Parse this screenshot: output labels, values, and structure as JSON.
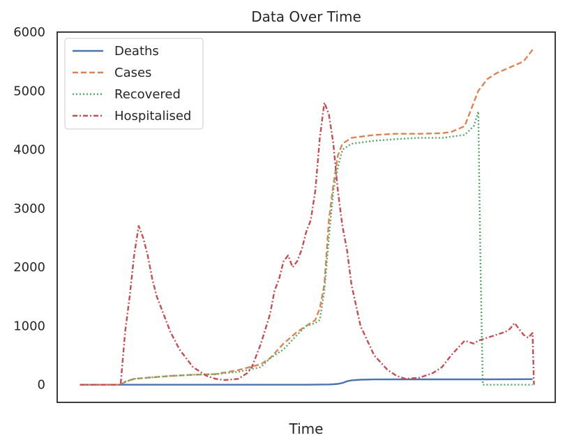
{
  "chart_data": {
    "type": "line",
    "title": "Data Over Time",
    "xlabel": "Time",
    "ylabel": "",
    "ylim": [
      -300,
      6000
    ],
    "yticks": [
      0,
      1000,
      2000,
      3000,
      4000,
      5000,
      6000
    ],
    "yticklabels": [
      "0",
      "1000",
      "2000",
      "3000",
      "4000",
      "5000",
      "6000"
    ],
    "xlim": [
      -5,
      105
    ],
    "legend_position": "upper-left",
    "grid": false,
    "series": [
      {
        "name": "Deaths",
        "color": "#4c72b0",
        "dash": "solid",
        "x": [
          0,
          10,
          20,
          30,
          40,
          50,
          55,
          56,
          57,
          58,
          59,
          60,
          62,
          65,
          70,
          80,
          90,
          100
        ],
        "y": [
          0,
          0,
          0,
          0,
          0,
          0,
          5,
          8,
          15,
          30,
          60,
          75,
          85,
          90,
          92,
          92,
          92,
          95
        ]
      },
      {
        "name": "Cases",
        "color": "#dd8452",
        "dash": "dashed",
        "x": [
          0,
          9,
          10,
          12,
          15,
          20,
          25,
          30,
          35,
          40,
          42,
          45,
          48,
          50,
          51,
          52,
          53,
          54,
          55,
          56,
          57,
          58,
          59,
          60,
          62,
          65,
          70,
          75,
          80,
          82,
          85,
          86,
          87,
          88,
          89,
          90,
          92,
          95,
          98,
          100
        ],
        "y": [
          0,
          0,
          50,
          100,
          120,
          150,
          170,
          180,
          250,
          350,
          450,
          700,
          900,
          1000,
          1050,
          1100,
          1300,
          1700,
          2800,
          3400,
          3900,
          4100,
          4150,
          4200,
          4220,
          4250,
          4270,
          4270,
          4280,
          4300,
          4400,
          4600,
          4800,
          5000,
          5100,
          5200,
          5300,
          5400,
          5500,
          5700
        ]
      },
      {
        "name": "Recovered",
        "color": "#55a868",
        "dash": "dotted",
        "x": [
          0,
          9,
          10,
          12,
          15,
          20,
          25,
          30,
          35,
          40,
          42,
          45,
          48,
          50,
          52,
          53,
          54,
          55,
          56,
          57,
          58,
          59,
          60,
          65,
          70,
          75,
          80,
          85,
          87,
          88,
          88.5,
          89,
          90,
          95,
          100
        ],
        "y": [
          0,
          0,
          50,
          100,
          120,
          150,
          170,
          180,
          220,
          300,
          450,
          600,
          850,
          1000,
          1050,
          1100,
          1600,
          2500,
          3300,
          3700,
          4000,
          4050,
          4100,
          4150,
          4180,
          4200,
          4200,
          4250,
          4400,
          4650,
          2000,
          0,
          0,
          0,
          0
        ]
      },
      {
        "name": "Hospitalised",
        "color": "#c44e52",
        "dash": "dashdot",
        "x": [
          0,
          9,
          10,
          11,
          12,
          13,
          14,
          15,
          16,
          17,
          18,
          20,
          22,
          25,
          28,
          30,
          32,
          35,
          37,
          38,
          40,
          42,
          43,
          44,
          45,
          46,
          47,
          48,
          49,
          50,
          51,
          52,
          53,
          54,
          55,
          56,
          57,
          58,
          59,
          60,
          62,
          65,
          68,
          70,
          72,
          75,
          78,
          80,
          82,
          85,
          87,
          88,
          90,
          92,
          94,
          95,
          96,
          97,
          98,
          99,
          100,
          100.3
        ],
        "y": [
          0,
          0,
          900,
          1500,
          2200,
          2700,
          2500,
          2200,
          1800,
          1500,
          1300,
          900,
          600,
          300,
          150,
          100,
          80,
          100,
          200,
          300,
          700,
          1200,
          1600,
          1800,
          2100,
          2200,
          2000,
          2100,
          2300,
          2600,
          2800,
          3300,
          4200,
          4800,
          4600,
          4100,
          3300,
          2700,
          2300,
          1700,
          1000,
          500,
          250,
          150,
          100,
          120,
          200,
          300,
          500,
          750,
          700,
          750,
          800,
          850,
          900,
          950,
          1050,
          950,
          850,
          800,
          880,
          0
        ]
      }
    ]
  }
}
